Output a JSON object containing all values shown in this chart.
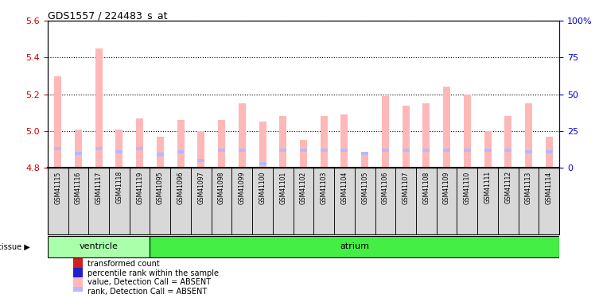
{
  "title": "GDS1557 / 224483_s_at",
  "samples": [
    "GSM41115",
    "GSM41116",
    "GSM41117",
    "GSM41118",
    "GSM41119",
    "GSM41095",
    "GSM41096",
    "GSM41097",
    "GSM41098",
    "GSM41099",
    "GSM41100",
    "GSM41101",
    "GSM41102",
    "GSM41103",
    "GSM41104",
    "GSM41105",
    "GSM41106",
    "GSM41107",
    "GSM41108",
    "GSM41109",
    "GSM41110",
    "GSM41111",
    "GSM41112",
    "GSM41113",
    "GSM41114"
  ],
  "values": [
    5.3,
    5.01,
    5.45,
    5.01,
    5.07,
    4.97,
    5.06,
    5.0,
    5.06,
    5.15,
    5.05,
    5.08,
    4.95,
    5.08,
    5.09,
    4.87,
    5.19,
    5.14,
    5.15,
    5.24,
    5.2,
    5.0,
    5.08,
    5.15,
    4.97
  ],
  "ranks_pct": [
    13,
    10,
    13,
    11,
    13,
    9,
    11,
    5,
    12,
    12,
    3,
    12,
    12,
    12,
    12,
    10,
    12,
    12,
    12,
    12,
    12,
    12,
    12,
    11,
    11
  ],
  "ymin": 4.8,
  "ymax": 5.6,
  "rmin": 0,
  "rmax": 100,
  "yticks_left": [
    4.8,
    5.0,
    5.2,
    5.4,
    5.6
  ],
  "yticks_right": [
    0,
    25,
    50,
    75,
    100
  ],
  "ytick_labels_right": [
    "0",
    "25",
    "50",
    "75",
    "100%"
  ],
  "bar_color_absent": "#ffb8b8",
  "bar_color_rank_absent": "#b8b8ff",
  "tissue_groups": [
    {
      "label": "ventricle",
      "start": 0,
      "end": 5,
      "color": "#aaffaa"
    },
    {
      "label": "atrium",
      "start": 5,
      "end": 25,
      "color": "#44ee44"
    }
  ],
  "tissue_label": "tissue",
  "legend_items": [
    {
      "color": "#cc2222",
      "label": "transformed count",
      "size": "square"
    },
    {
      "color": "#2222cc",
      "label": "percentile rank within the sample",
      "size": "square"
    },
    {
      "color": "#ffb8b8",
      "label": "value, Detection Call = ABSENT",
      "size": "square"
    },
    {
      "color": "#b8b8ff",
      "label": "rank, Detection Call = ABSENT",
      "size": "square"
    }
  ],
  "left_axis_color": "#cc0000",
  "right_axis_color": "#0000cc",
  "bar_width": 0.35,
  "xtick_bg": "#d8d8d8",
  "n_ventricle": 5
}
